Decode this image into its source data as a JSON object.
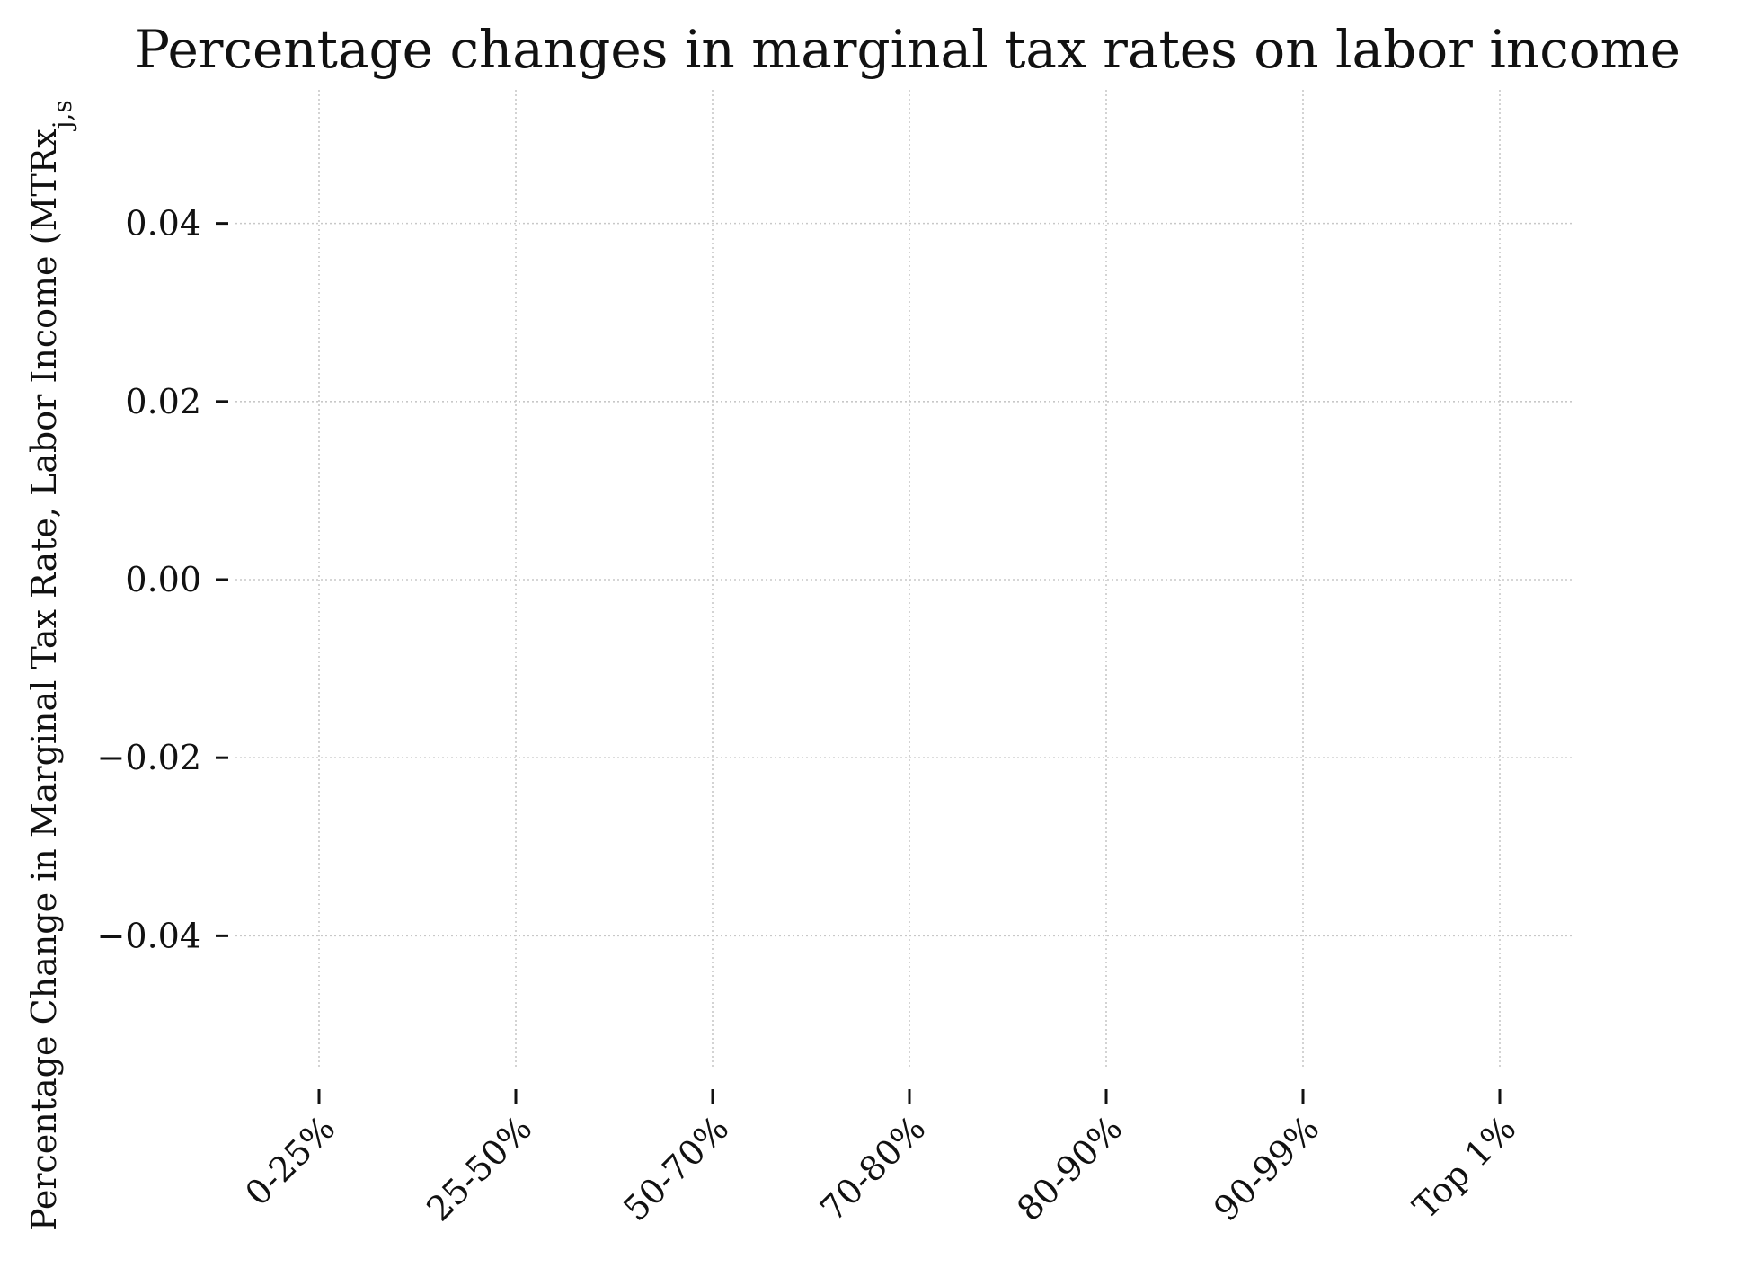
{
  "chart_data": {
    "type": "bar",
    "title": "Percentage changes in marginal tax rates on labor income",
    "xlabel": "",
    "ylabel": "Percentage Change in Marginal Tax Rate, Labor Income (MTRx",
    "ylabel_subscript": "j,s",
    "categories": [
      "0-25%",
      "25-50%",
      "50-70%",
      "70-80%",
      "80-90%",
      "90-99%",
      "Top 1%"
    ],
    "series": [],
    "yticks": [
      0.04,
      0.02,
      0.0,
      -0.02,
      -0.04
    ],
    "ytick_labels": [
      "0.04",
      "0.02",
      "0.00",
      "−0.02",
      "−0.04"
    ],
    "ylim": [
      -0.055,
      0.055
    ],
    "grid": true,
    "legend": "none"
  }
}
